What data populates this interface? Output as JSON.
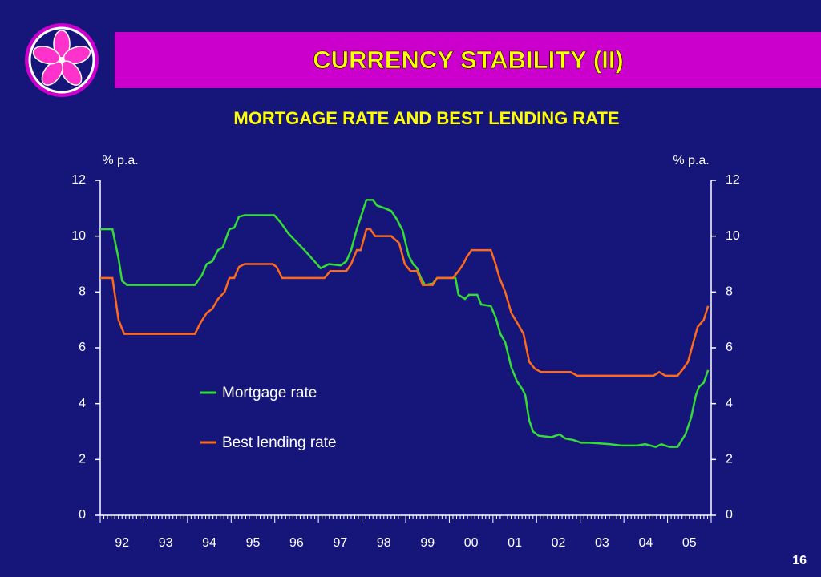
{
  "header": {
    "title": "CURRENCY STABILITY  (II)"
  },
  "page_number": "16",
  "chart_data": {
    "type": "line",
    "title": "MORTGAGE RATE AND BEST LENDING RATE",
    "y_label": "% p.a.",
    "y2_label": "% p.a.",
    "xlim": [
      1992,
      2006
    ],
    "xticks": [
      {
        "value": 1992.5,
        "label": "92"
      },
      {
        "value": 1993.5,
        "label": "93"
      },
      {
        "value": 1994.5,
        "label": "94"
      },
      {
        "value": 1995.5,
        "label": "95"
      },
      {
        "value": 1996.5,
        "label": "96"
      },
      {
        "value": 1997.5,
        "label": "97"
      },
      {
        "value": 1998.5,
        "label": "98"
      },
      {
        "value": 1999.5,
        "label": "99"
      },
      {
        "value": 2000.5,
        "label": "00"
      },
      {
        "value": 2001.5,
        "label": "01"
      },
      {
        "value": 2002.5,
        "label": "02"
      },
      {
        "value": 2003.5,
        "label": "03"
      },
      {
        "value": 2004.5,
        "label": "04"
      },
      {
        "value": 2005.5,
        "label": "05"
      }
    ],
    "ylim": [
      0,
      12
    ],
    "yticks": [
      0,
      2,
      4,
      6,
      8,
      10,
      12
    ],
    "y2lim": [
      0,
      12
    ],
    "y2ticks": [
      0,
      2,
      4,
      6,
      8,
      10,
      12
    ],
    "series": [
      {
        "name": "Mortgage rate",
        "color": "#33dd33",
        "x": [
          1992.0,
          1992.28,
          1992.42,
          1992.5,
          1992.61,
          1994.17,
          1994.33,
          1994.44,
          1994.57,
          1994.7,
          1994.81,
          1994.96,
          1995.07,
          1995.18,
          1995.31,
          1995.99,
          1996.13,
          1996.31,
          1996.68,
          1997.05,
          1997.24,
          1997.51,
          1997.64,
          1997.75,
          1997.88,
          1998.1,
          1998.25,
          1998.34,
          1998.52,
          1998.67,
          1998.8,
          1998.93,
          1999.07,
          1999.17,
          1999.26,
          1999.35,
          1999.44,
          1999.62,
          1999.72,
          2000.08,
          2000.14,
          2000.21,
          2000.36,
          2000.45,
          2000.64,
          2000.73,
          2000.95,
          2001.06,
          2001.17,
          2001.28,
          2001.42,
          2001.55,
          2001.68,
          2001.74,
          2001.83,
          2001.92,
          2002.05,
          2002.34,
          2002.53,
          2002.66,
          2002.84,
          2003.02,
          2003.21,
          2003.67,
          2003.94,
          2004.31,
          2004.49,
          2004.73,
          2004.86,
          2005.04,
          2005.23,
          2005.41,
          2005.54,
          2005.65,
          2005.72,
          2005.83,
          2005.93
        ],
        "values": [
          10.25,
          10.25,
          9.2,
          8.4,
          8.25,
          8.25,
          8.6,
          9.0,
          9.1,
          9.5,
          9.6,
          10.25,
          10.3,
          10.7,
          10.75,
          10.75,
          10.5,
          10.1,
          9.5,
          8.85,
          9.0,
          8.95,
          9.1,
          9.5,
          10.25,
          11.3,
          11.3,
          11.1,
          11.0,
          10.9,
          10.6,
          10.2,
          9.3,
          9.0,
          8.85,
          8.5,
          8.25,
          8.3,
          8.5,
          8.5,
          8.5,
          7.9,
          7.75,
          7.9,
          7.9,
          7.55,
          7.5,
          7.1,
          6.5,
          6.2,
          5.3,
          4.8,
          4.5,
          4.3,
          3.4,
          3.0,
          2.85,
          2.8,
          2.9,
          2.75,
          2.7,
          2.6,
          2.6,
          2.55,
          2.5,
          2.5,
          2.55,
          2.45,
          2.55,
          2.45,
          2.45,
          2.9,
          3.5,
          4.3,
          4.6,
          4.75,
          5.2
        ]
      },
      {
        "name": "Best lending rate",
        "color": "#ff6a1a",
        "x": [
          1992.0,
          1992.28,
          1992.42,
          1992.55,
          1994.17,
          1994.3,
          1994.44,
          1994.57,
          1994.7,
          1994.85,
          1994.96,
          1995.07,
          1995.18,
          1995.31,
          1995.95,
          1996.04,
          1996.17,
          1997.14,
          1997.27,
          1997.64,
          1997.75,
          1997.88,
          1997.97,
          1998.1,
          1998.19,
          1998.3,
          1998.67,
          1998.85,
          1998.98,
          1999.11,
          1999.26,
          1999.39,
          1999.62,
          1999.72,
          2000.08,
          2000.21,
          2000.32,
          2000.4,
          2000.51,
          2000.95,
          2001.06,
          2001.15,
          2001.28,
          2001.42,
          2001.61,
          2001.7,
          2001.83,
          2001.96,
          2002.1,
          2002.78,
          2002.93,
          2004.68,
          2004.81,
          2004.95,
          2005.23,
          2005.36,
          2005.47,
          2005.6,
          2005.69,
          2005.83,
          2005.93
        ],
        "values": [
          8.5,
          8.5,
          7.0,
          6.5,
          6.5,
          6.9,
          7.25,
          7.4,
          7.75,
          8.0,
          8.5,
          8.5,
          8.9,
          9.0,
          9.0,
          8.9,
          8.5,
          8.5,
          8.75,
          8.75,
          9.0,
          9.5,
          9.5,
          10.25,
          10.25,
          10.0,
          10.0,
          9.75,
          9.0,
          8.75,
          8.75,
          8.25,
          8.25,
          8.5,
          8.5,
          8.75,
          9.0,
          9.25,
          9.5,
          9.5,
          9.0,
          8.5,
          8.0,
          7.25,
          6.75,
          6.5,
          5.5,
          5.25,
          5.13,
          5.13,
          5.0,
          5.0,
          5.13,
          5.0,
          5.0,
          5.25,
          5.5,
          6.25,
          6.75,
          7.0,
          7.5
        ]
      }
    ]
  }
}
